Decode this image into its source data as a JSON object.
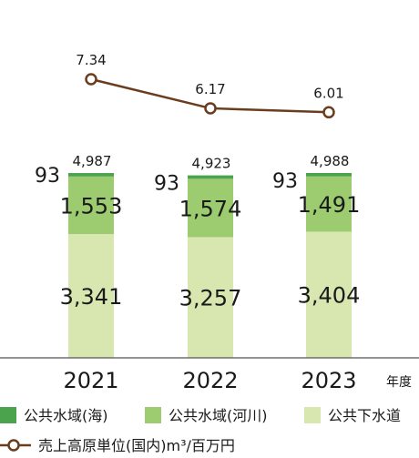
{
  "chart_data": {
    "type": "bar",
    "stacked": true,
    "categories": [
      "2021",
      "2022",
      "2023"
    ],
    "x_unit": "年度",
    "series": [
      {
        "name": "公共水域(海)",
        "values": [
          93,
          93,
          93
        ],
        "labels": [
          "93",
          "93",
          "93"
        ],
        "color": "#4ba34d"
      },
      {
        "name": "公共水域(河川)",
        "values": [
          1553,
          1574,
          1491
        ],
        "labels": [
          "1,553",
          "1,574",
          "1,491"
        ],
        "color": "#9ccc6f"
      },
      {
        "name": "公共下水道",
        "values": [
          3341,
          3257,
          3404
        ],
        "labels": [
          "3,341",
          "3,257",
          "3,404"
        ],
        "color": "#d8e7b0"
      }
    ],
    "totals": [
      "4,987",
      "4,923",
      "4,988"
    ],
    "line": {
      "name": "売上高原単位(国内)m³/百万円",
      "values": [
        7.34,
        6.17,
        6.01
      ],
      "labels": [
        "7.34",
        "6.17",
        "6.01"
      ],
      "color": "#6b3d1f"
    }
  },
  "legend": {
    "sea": "公共水域(海)",
    "river": "公共水域(河川)",
    "sewer": "公共下水道",
    "line": "売上高原単位(国内)m³/百万円"
  }
}
